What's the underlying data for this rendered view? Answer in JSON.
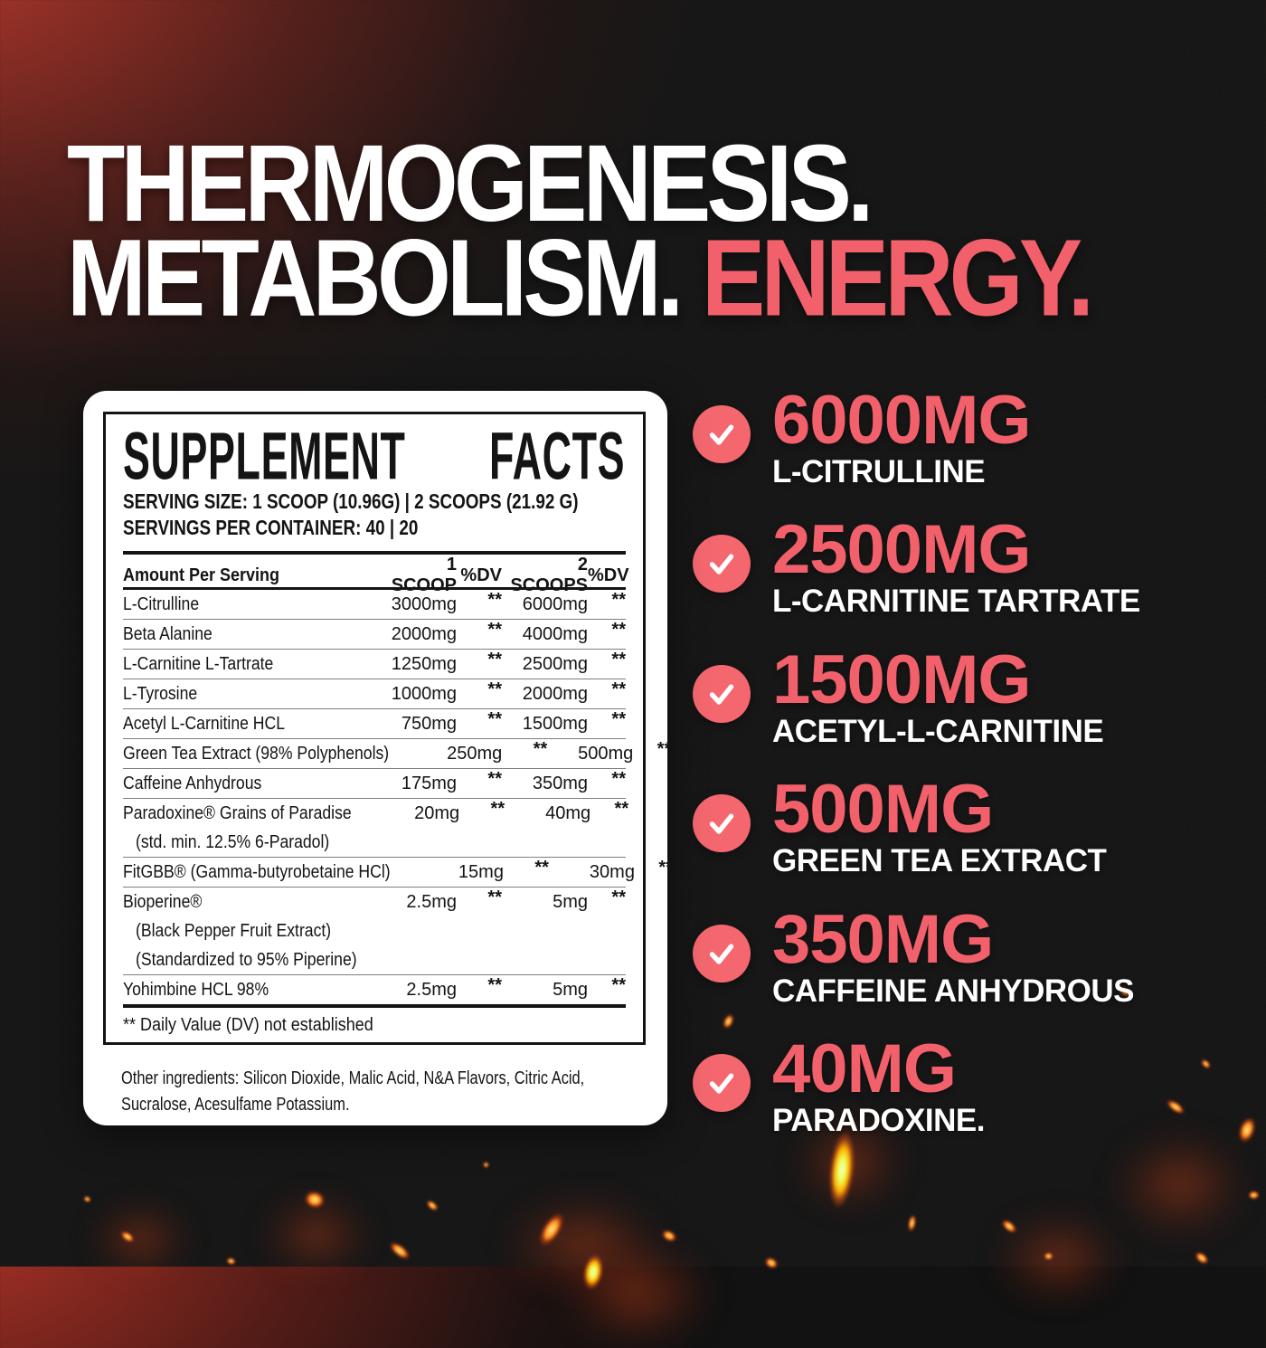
{
  "headline": {
    "line1": "THERMOGENESIS.",
    "line2_white": "METABOLISM. ",
    "line2_accent": "ENERGY."
  },
  "colors": {
    "accent": "#f2616b",
    "badge": "#f4676f",
    "background": "#121212",
    "glow_red": "#8c2822",
    "panel": "#ffffff",
    "table_text": "#141414",
    "ember_orange": "#ff8a1e",
    "ember_green": "#e8ff5e"
  },
  "icons": {
    "badge_icon": "check"
  },
  "panel": {
    "title": "SUPPLEMENT FACTS",
    "serving_size": "SERVING SIZE: 1 SCOOP (10.96G) | 2 SCOOPS (21.92 G)",
    "servings_per_container": "SERVINGS PER CONTAINER: 40 | 20",
    "columns": [
      "Amount Per Serving",
      "1 SCOOP",
      "%DV",
      "2 SCOOPS",
      "%DV"
    ],
    "rows": [
      {
        "name": "L-Citrulline",
        "scoop1": "3000mg",
        "dv1": "**",
        "scoop2": "6000mg",
        "dv2": "**",
        "sub": []
      },
      {
        "name": "Beta Alanine",
        "scoop1": "2000mg",
        "dv1": "**",
        "scoop2": "4000mg",
        "dv2": "**",
        "sub": []
      },
      {
        "name": "L-Carnitine L-Tartrate",
        "scoop1": "1250mg",
        "dv1": "**",
        "scoop2": "2500mg",
        "dv2": "**",
        "sub": []
      },
      {
        "name": "L-Tyrosine",
        "scoop1": "1000mg",
        "dv1": "**",
        "scoop2": "2000mg",
        "dv2": "**",
        "sub": []
      },
      {
        "name": "Acetyl L-Carnitine HCL",
        "scoop1": "750mg",
        "dv1": "**",
        "scoop2": "1500mg",
        "dv2": "**",
        "sub": []
      },
      {
        "name": "Green Tea Extract (98% Polyphenols)",
        "scoop1": "250mg",
        "dv1": "**",
        "scoop2": "500mg",
        "dv2": "**",
        "sub": []
      },
      {
        "name": "Caffeine Anhydrous",
        "scoop1": "175mg",
        "dv1": "**",
        "scoop2": "350mg",
        "dv2": "**",
        "sub": []
      },
      {
        "name": "Paradoxine® Grains of Paradise",
        "scoop1": "20mg",
        "dv1": "**",
        "scoop2": "40mg",
        "dv2": "**",
        "sub": [
          "(std. min. 12.5% 6-Paradol)"
        ]
      },
      {
        "name": "FitGBB® (Gamma-butyrobetaine HCl)",
        "scoop1": "15mg",
        "dv1": "**",
        "scoop2": "30mg",
        "dv2": "**",
        "sub": []
      },
      {
        "name": "Bioperine®",
        "scoop1": "2.5mg",
        "dv1": "**",
        "scoop2": "5mg",
        "dv2": "**",
        "sub": [
          "(Black Pepper Fruit Extract)",
          "(Standardized to 95% Piperine)"
        ]
      },
      {
        "name": "Yohimbine HCL 98%",
        "scoop1": "2.5mg",
        "dv1": "**",
        "scoop2": "5mg",
        "dv2": "**",
        "sub": []
      }
    ],
    "footnote": "** Daily Value (DV) not established",
    "other_ingredients_lines": [
      "Other ingredients: Silicon Dioxide, Malic Acid, N&A Flavors, Citric Acid,",
      "Sucralose, Acesulfame Potassium."
    ]
  },
  "highlights": [
    {
      "amount": "6000MG",
      "name": "L-CITRULLINE"
    },
    {
      "amount": "2500MG",
      "name": "L-CARNITINE TARTRATE"
    },
    {
      "amount": "1500MG",
      "name": "ACETYL-L-CARNITINE"
    },
    {
      "amount": "500MG",
      "name": "GREEN TEA EXTRACT"
    },
    {
      "amount": "350MG",
      "name": "CAFFEINE ANHYDROUS"
    },
    {
      "amount": "40MG",
      "name": "PARADOXINE."
    }
  ]
}
